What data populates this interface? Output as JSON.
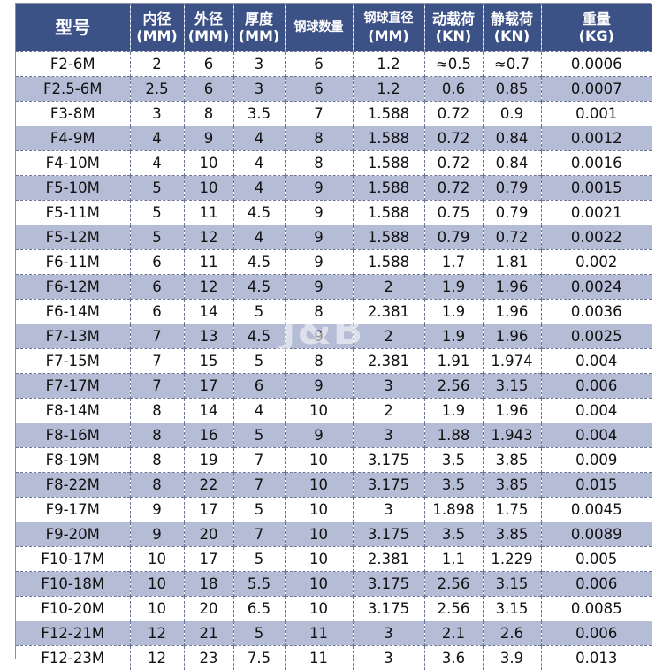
{
  "table": {
    "headers": [
      {
        "line1": "型号",
        "line2": ""
      },
      {
        "line1": "内径",
        "line2": "(MM)"
      },
      {
        "line1": "外径",
        "line2": "(MM)"
      },
      {
        "line1": "厚度",
        "line2": "(MM)"
      },
      {
        "line1": "钢球数量",
        "line2": ""
      },
      {
        "line1": "钢球直径",
        "line2": "(MM)"
      },
      {
        "line1": "动载荷",
        "line2": "(KN)"
      },
      {
        "line1": "静载荷",
        "line2": "(KN)"
      },
      {
        "line1": "重量",
        "line2": "(KG)"
      }
    ],
    "rows": [
      [
        "F2-6M",
        "2",
        "6",
        "3",
        "6",
        "1.2",
        "≈0.5",
        "≈0.7",
        "0.0006"
      ],
      [
        "F2.5-6M",
        "2.5",
        "6",
        "3",
        "6",
        "1.2",
        "0.6",
        "0.85",
        "0.0007"
      ],
      [
        "F3-8M",
        "3",
        "8",
        "3.5",
        "7",
        "1.588",
        "0.72",
        "0.9",
        "0.001"
      ],
      [
        "F4-9M",
        "4",
        "9",
        "4",
        "8",
        "1.588",
        "0.72",
        "0.84",
        "0.0012"
      ],
      [
        "F4-10M",
        "4",
        "10",
        "4",
        "8",
        "1.588",
        "0.72",
        "0.84",
        "0.0016"
      ],
      [
        "F5-10M",
        "5",
        "10",
        "4",
        "9",
        "1.588",
        "0.72",
        "0.79",
        "0.0015"
      ],
      [
        "F5-11M",
        "5",
        "11",
        "4.5",
        "9",
        "1.588",
        "0.75",
        "0.79",
        "0.0021"
      ],
      [
        "F5-12M",
        "5",
        "12",
        "4",
        "9",
        "1.588",
        "0.79",
        "0.72",
        "0.0022"
      ],
      [
        "F6-11M",
        "6",
        "11",
        "4.5",
        "9",
        "1.588",
        "1.7",
        "1.81",
        "0.002"
      ],
      [
        "F6-12M",
        "6",
        "12",
        "4.5",
        "9",
        "2",
        "1.9",
        "1.96",
        "0.0024"
      ],
      [
        "F6-14M",
        "6",
        "14",
        "5",
        "8",
        "2.381",
        "1.9",
        "1.96",
        "0.0036"
      ],
      [
        "F7-13M",
        "7",
        "13",
        "4.5",
        "9",
        "2",
        "1.9",
        "1.96",
        "0.0025"
      ],
      [
        "F7-15M",
        "7",
        "15",
        "5",
        "8",
        "2.381",
        "1.91",
        "1.974",
        "0.004"
      ],
      [
        "F7-17M",
        "7",
        "17",
        "6",
        "9",
        "3",
        "2.56",
        "3.15",
        "0.006"
      ],
      [
        "F8-14M",
        "8",
        "14",
        "4",
        "10",
        "2",
        "1.9",
        "1.96",
        "0.004"
      ],
      [
        "F8-16M",
        "8",
        "16",
        "5",
        "9",
        "3",
        "1.88",
        "1.943",
        "0.004"
      ],
      [
        "F8-19M",
        "8",
        "19",
        "7",
        "10",
        "3.175",
        "3.5",
        "3.85",
        "0.009"
      ],
      [
        "F8-22M",
        "8",
        "22",
        "7",
        "10",
        "3.175",
        "3.5",
        "3.85",
        "0.015"
      ],
      [
        "F9-17M",
        "9",
        "17",
        "5",
        "10",
        "3",
        "1.898",
        "1.75",
        "0.0045"
      ],
      [
        "F9-20M",
        "9",
        "20",
        "7",
        "10",
        "3.175",
        "3.5",
        "3.85",
        "0.0089"
      ],
      [
        "F10-17M",
        "10",
        "17",
        "5",
        "10",
        "2.381",
        "1.1",
        "1.229",
        "0.005"
      ],
      [
        "F10-18M",
        "10",
        "18",
        "5.5",
        "10",
        "3.175",
        "2.56",
        "3.15",
        "0.006"
      ],
      [
        "F10-20M",
        "10",
        "20",
        "6.5",
        "10",
        "3.175",
        "2.56",
        "3.15",
        "0.0085"
      ],
      [
        "F12-21M",
        "12",
        "21",
        "5",
        "11",
        "3",
        "2.1",
        "2.6",
        "0.006"
      ],
      [
        "F12-23M",
        "12",
        "23",
        "7.5",
        "11",
        "3",
        "3.6",
        "3.9",
        "0.013"
      ]
    ]
  },
  "watermark": "J&B",
  "colors": {
    "header_bg": "#3c5186",
    "stripe_bg": "#b5bcd6",
    "row_bg": "#ffffff"
  }
}
